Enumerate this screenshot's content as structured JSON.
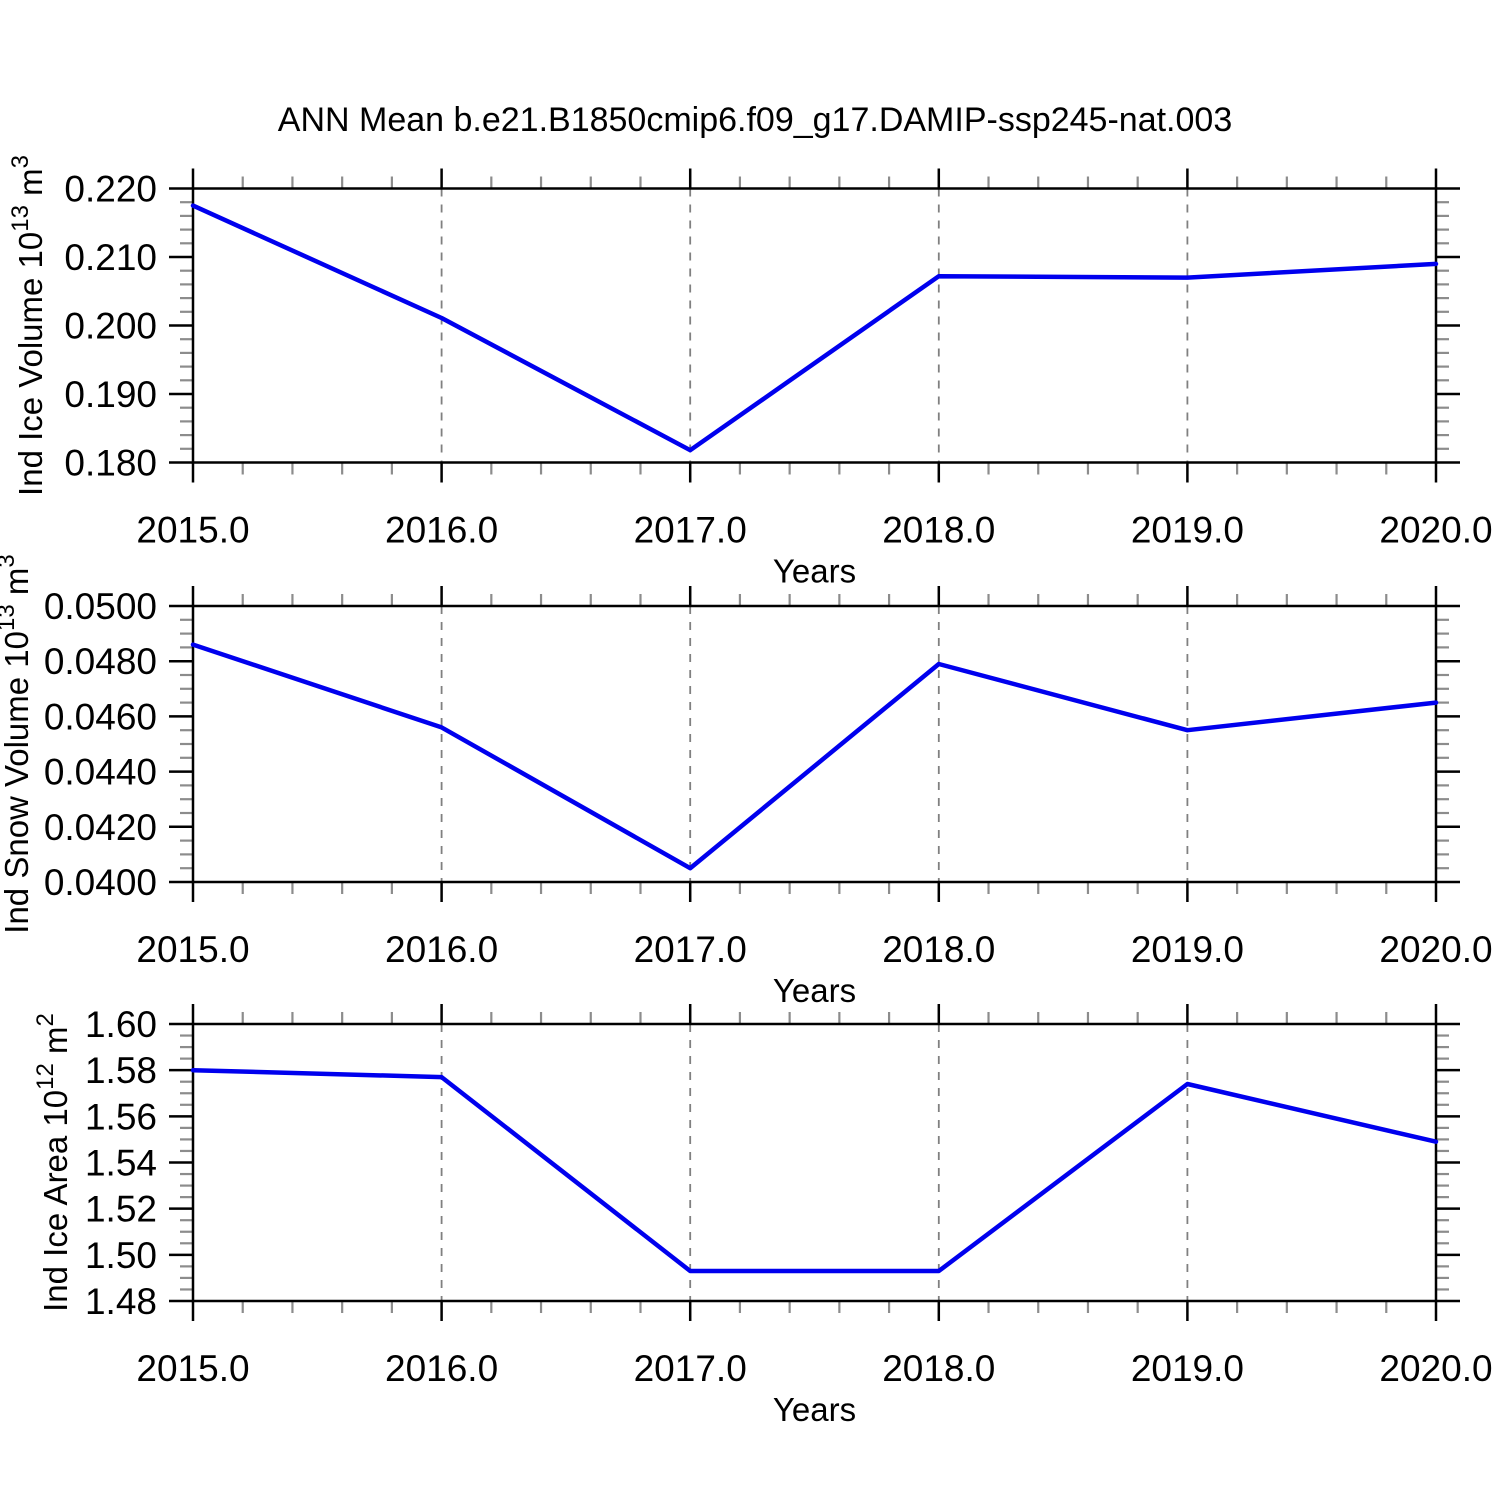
{
  "title": "ANN Mean b.e21.B1850cmip6.f09_g17.DAMIP-ssp245-nat.003",
  "colors": {
    "line": "#0000ee",
    "axis": "#000000",
    "major_tick": "#000000",
    "minor_tick": "#8c8c8c",
    "grid": "#808080",
    "text": "#000000",
    "background": "#ffffff"
  },
  "x_axis": {
    "label": "Years",
    "values": [
      2015,
      2016,
      2017,
      2018,
      2019,
      2020
    ],
    "tick_labels": [
      "2015.0",
      "2016.0",
      "2017.0",
      "2018.0",
      "2019.0",
      "2020.0"
    ],
    "minor_intervals_per_major": 5,
    "grid_years": [
      2016,
      2017,
      2018,
      2019
    ],
    "grid_style": "dashed"
  },
  "chart_data": [
    {
      "type": "line",
      "name": "ind-ice-volume",
      "ylabel": "Ind Ice Volume 10^13 m^3",
      "xlabel": "Years",
      "x": [
        2015,
        2016,
        2017,
        2018,
        2019,
        2020
      ],
      "values": [
        0.2175,
        0.2011,
        0.1818,
        0.2072,
        0.207,
        0.209
      ],
      "ylim": [
        0.18,
        0.22
      ],
      "ytick_values": [
        0.22,
        0.21,
        0.2,
        0.19,
        0.18
      ],
      "ytick_labels": [
        "0.220",
        "0.210",
        "0.200",
        "0.190",
        "0.180"
      ],
      "y_major_step": 0.01,
      "y_minor_step": 0.002,
      "grid": "vertical-dashed",
      "legend": "none"
    },
    {
      "type": "line",
      "name": "ind-snow-volume",
      "ylabel": "Ind Snow Volume 10^13 m^3",
      "xlabel": "Years",
      "x": [
        2015,
        2016,
        2017,
        2018,
        2019,
        2020
      ],
      "values": [
        0.0486,
        0.0456,
        0.0405,
        0.0479,
        0.0455,
        0.0465
      ],
      "ylim": [
        0.04,
        0.05
      ],
      "ytick_values": [
        0.05,
        0.048,
        0.046,
        0.044,
        0.042,
        0.04
      ],
      "ytick_labels": [
        "0.0500",
        "0.0480",
        "0.0460",
        "0.0440",
        "0.0420",
        "0.0400"
      ],
      "y_major_step": 0.002,
      "y_minor_step": 0.0005,
      "grid": "vertical-dashed",
      "legend": "none"
    },
    {
      "type": "line",
      "name": "ind-ice-area",
      "ylabel": "Ind Ice Area 10^12 m^2",
      "xlabel": "Years",
      "x": [
        2015,
        2016,
        2017,
        2018,
        2019,
        2020
      ],
      "values": [
        1.58,
        1.577,
        1.493,
        1.493,
        1.574,
        1.549
      ],
      "ylim": [
        1.48,
        1.6
      ],
      "ytick_values": [
        1.6,
        1.58,
        1.56,
        1.54,
        1.52,
        1.5,
        1.48
      ],
      "ytick_labels": [
        "1.60",
        "1.58",
        "1.56",
        "1.54",
        "1.52",
        "1.50",
        "1.48"
      ],
      "y_major_step": 0.02,
      "y_minor_step": 0.005,
      "grid": "vertical-dashed",
      "legend": "none"
    }
  ]
}
